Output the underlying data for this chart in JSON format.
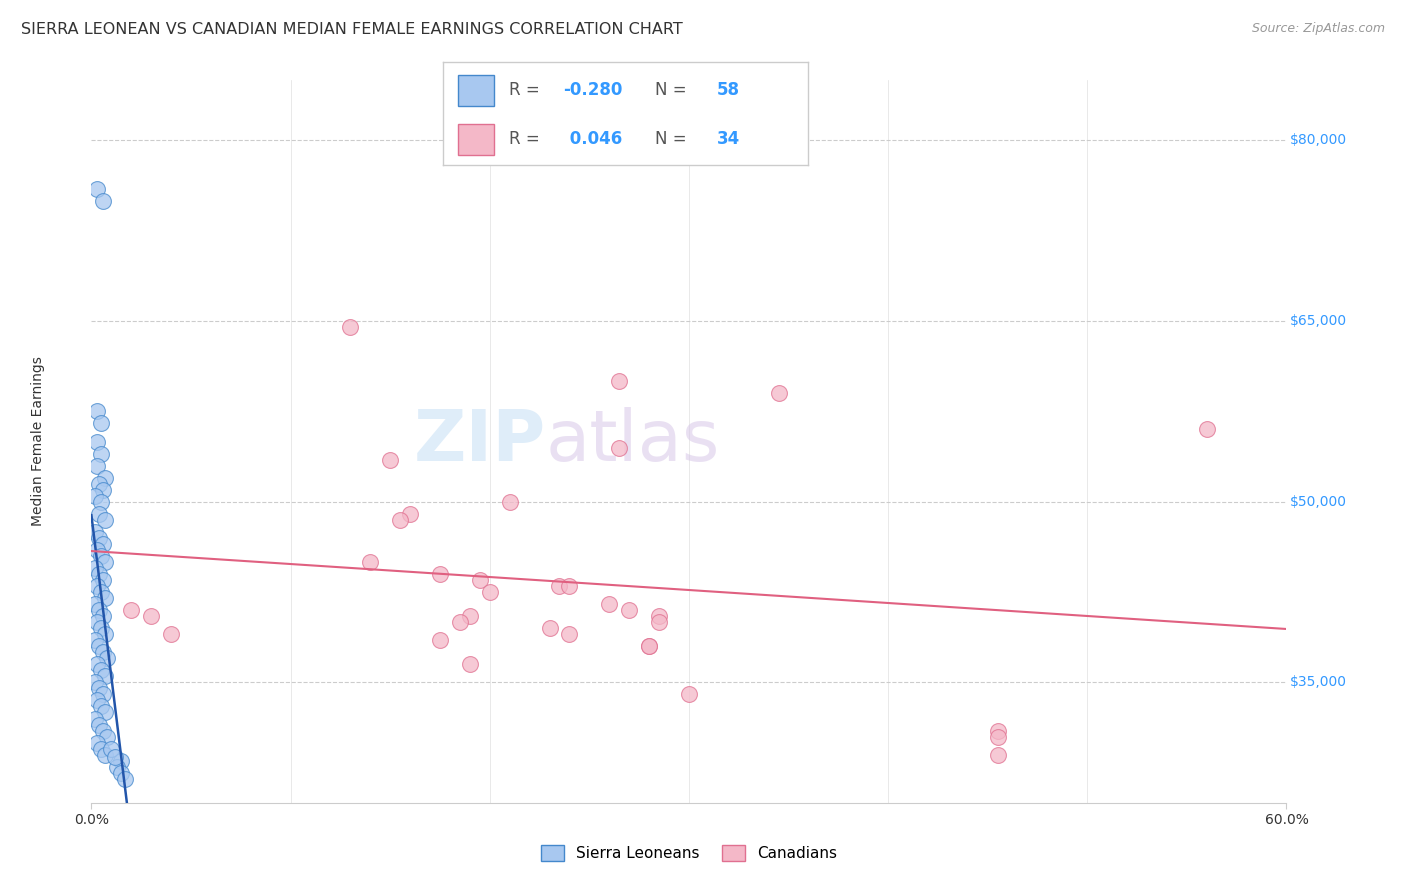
{
  "title": "SIERRA LEONEAN VS CANADIAN MEDIAN FEMALE EARNINGS CORRELATION CHART",
  "source": "Source: ZipAtlas.com",
  "ylabel": "Median Female Earnings",
  "xlim": [
    0.0,
    0.6
  ],
  "ylim": [
    25000,
    85000
  ],
  "yticks": [
    35000,
    50000,
    65000,
    80000
  ],
  "ytick_labels": [
    "$35,000",
    "$50,000",
    "$65,000",
    "$80,000"
  ],
  "watermark_zip": "ZIP",
  "watermark_atlas": "atlas",
  "background_color": "#ffffff",
  "grid_color": "#cccccc",
  "sierra_leonean_color": "#a8c8f0",
  "canadian_color": "#f4b8c8",
  "sl_edge_color": "#4488cc",
  "ca_edge_color": "#e07090",
  "sl_trend_color": "#2255aa",
  "ca_trend_color": "#e06080",
  "sl_scatter": [
    [
      0.003,
      76000
    ],
    [
      0.006,
      75000
    ],
    [
      0.003,
      57500
    ],
    [
      0.005,
      56500
    ],
    [
      0.003,
      55000
    ],
    [
      0.005,
      54000
    ],
    [
      0.003,
      53000
    ],
    [
      0.007,
      52000
    ],
    [
      0.004,
      51500
    ],
    [
      0.006,
      51000
    ],
    [
      0.002,
      50500
    ],
    [
      0.005,
      50000
    ],
    [
      0.004,
      49000
    ],
    [
      0.007,
      48500
    ],
    [
      0.002,
      47500
    ],
    [
      0.004,
      47000
    ],
    [
      0.006,
      46500
    ],
    [
      0.003,
      46000
    ],
    [
      0.005,
      45500
    ],
    [
      0.007,
      45000
    ],
    [
      0.002,
      44500
    ],
    [
      0.004,
      44000
    ],
    [
      0.006,
      43500
    ],
    [
      0.003,
      43000
    ],
    [
      0.005,
      42500
    ],
    [
      0.007,
      42000
    ],
    [
      0.002,
      41500
    ],
    [
      0.004,
      41000
    ],
    [
      0.006,
      40500
    ],
    [
      0.003,
      40000
    ],
    [
      0.005,
      39500
    ],
    [
      0.007,
      39000
    ],
    [
      0.002,
      38500
    ],
    [
      0.004,
      38000
    ],
    [
      0.006,
      37500
    ],
    [
      0.008,
      37000
    ],
    [
      0.003,
      36500
    ],
    [
      0.005,
      36000
    ],
    [
      0.007,
      35500
    ],
    [
      0.002,
      35000
    ],
    [
      0.004,
      34500
    ],
    [
      0.006,
      34000
    ],
    [
      0.003,
      33500
    ],
    [
      0.005,
      33000
    ],
    [
      0.007,
      32500
    ],
    [
      0.002,
      32000
    ],
    [
      0.004,
      31500
    ],
    [
      0.006,
      31000
    ],
    [
      0.008,
      30500
    ],
    [
      0.003,
      30000
    ],
    [
      0.005,
      29500
    ],
    [
      0.007,
      29000
    ],
    [
      0.015,
      28500
    ],
    [
      0.013,
      28000
    ],
    [
      0.015,
      27500
    ],
    [
      0.017,
      27000
    ],
    [
      0.01,
      29500
    ],
    [
      0.012,
      28800
    ]
  ],
  "ca_scatter": [
    [
      0.13,
      64500
    ],
    [
      0.265,
      60000
    ],
    [
      0.345,
      59000
    ],
    [
      0.265,
      54500
    ],
    [
      0.15,
      53500
    ],
    [
      0.21,
      50000
    ],
    [
      0.16,
      49000
    ],
    [
      0.155,
      48500
    ],
    [
      0.14,
      45000
    ],
    [
      0.175,
      44000
    ],
    [
      0.195,
      43500
    ],
    [
      0.235,
      43000
    ],
    [
      0.24,
      43000
    ],
    [
      0.2,
      42500
    ],
    [
      0.26,
      41500
    ],
    [
      0.27,
      41000
    ],
    [
      0.285,
      40500
    ],
    [
      0.285,
      40000
    ],
    [
      0.19,
      40500
    ],
    [
      0.185,
      40000
    ],
    [
      0.23,
      39500
    ],
    [
      0.24,
      39000
    ],
    [
      0.175,
      38500
    ],
    [
      0.28,
      38000
    ],
    [
      0.28,
      38000
    ],
    [
      0.19,
      36500
    ],
    [
      0.02,
      41000
    ],
    [
      0.03,
      40500
    ],
    [
      0.04,
      39000
    ],
    [
      0.3,
      34000
    ],
    [
      0.455,
      31000
    ],
    [
      0.455,
      30500
    ],
    [
      0.56,
      56000
    ],
    [
      0.455,
      29000
    ]
  ],
  "title_fontsize": 11.5,
  "axis_label_fontsize": 10,
  "tick_fontsize": 10,
  "legend_fontsize": 12,
  "source_fontsize": 9
}
